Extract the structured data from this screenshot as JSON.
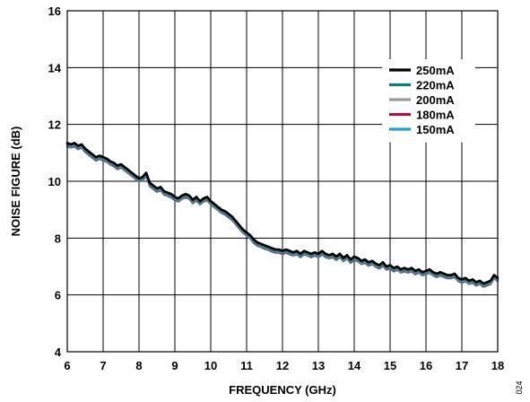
{
  "chart_data": {
    "type": "line",
    "title": "",
    "xlabel": "FREQUENCY (GHz)",
    "ylabel": "NOISE FIGURE (dB)",
    "xlim": [
      6,
      18
    ],
    "ylim": [
      4,
      16
    ],
    "xticks": [
      6,
      7,
      8,
      9,
      10,
      11,
      12,
      13,
      14,
      15,
      16,
      17,
      18
    ],
    "yticks": [
      4,
      6,
      8,
      10,
      12,
      14,
      16
    ],
    "grid": true,
    "legend_position": "top-right",
    "figure_id": "024",
    "x": [
      6.0,
      6.1,
      6.2,
      6.3,
      6.4,
      6.5,
      6.6,
      6.7,
      6.8,
      6.9,
      7.0,
      7.1,
      7.2,
      7.3,
      7.4,
      7.5,
      7.6,
      7.7,
      7.8,
      7.9,
      8.0,
      8.1,
      8.2,
      8.3,
      8.4,
      8.5,
      8.6,
      8.7,
      8.8,
      8.9,
      9.0,
      9.1,
      9.2,
      9.3,
      9.4,
      9.5,
      9.6,
      9.7,
      9.8,
      9.9,
      10.0,
      10.1,
      10.2,
      10.3,
      10.4,
      10.5,
      10.6,
      10.7,
      10.8,
      10.9,
      11.0,
      11.1,
      11.2,
      11.3,
      11.4,
      11.5,
      11.6,
      11.7,
      11.8,
      11.9,
      12.0,
      12.1,
      12.2,
      12.3,
      12.4,
      12.5,
      12.6,
      12.7,
      12.8,
      12.9,
      13.0,
      13.1,
      13.2,
      13.3,
      13.4,
      13.5,
      13.6,
      13.7,
      13.8,
      13.9,
      14.0,
      14.1,
      14.2,
      14.3,
      14.4,
      14.5,
      14.6,
      14.7,
      14.8,
      14.9,
      15.0,
      15.1,
      15.2,
      15.3,
      15.4,
      15.5,
      15.6,
      15.7,
      15.8,
      15.9,
      16.0,
      16.1,
      16.2,
      16.3,
      16.4,
      16.5,
      16.6,
      16.7,
      16.8,
      16.9,
      17.0,
      17.1,
      17.2,
      17.3,
      17.4,
      17.5,
      17.6,
      17.7,
      17.8,
      17.9,
      18.0
    ],
    "series": [
      {
        "name": "250mA",
        "color": "#000000",
        "values": [
          11.35,
          11.3,
          11.35,
          11.25,
          11.3,
          11.15,
          11.05,
          10.95,
          10.85,
          10.9,
          10.85,
          10.8,
          10.7,
          10.65,
          10.55,
          10.6,
          10.5,
          10.4,
          10.3,
          10.2,
          10.1,
          10.15,
          10.3,
          9.95,
          9.85,
          9.75,
          9.8,
          9.65,
          9.6,
          9.55,
          9.45,
          9.4,
          9.5,
          9.55,
          9.5,
          9.35,
          9.45,
          9.3,
          9.4,
          9.45,
          9.3,
          9.2,
          9.1,
          9.0,
          8.95,
          8.85,
          8.75,
          8.6,
          8.45,
          8.3,
          8.2,
          8.1,
          7.95,
          7.85,
          7.8,
          7.75,
          7.7,
          7.65,
          7.6,
          7.6,
          7.55,
          7.6,
          7.55,
          7.5,
          7.55,
          7.45,
          7.55,
          7.5,
          7.45,
          7.5,
          7.45,
          7.55,
          7.45,
          7.4,
          7.45,
          7.35,
          7.45,
          7.3,
          7.4,
          7.25,
          7.35,
          7.3,
          7.2,
          7.25,
          7.15,
          7.2,
          7.1,
          7.05,
          7.15,
          7.0,
          7.05,
          6.95,
          7.0,
          6.9,
          6.95,
          6.9,
          6.95,
          6.85,
          6.9,
          6.8,
          6.85,
          6.9,
          6.8,
          6.75,
          6.8,
          6.75,
          6.7,
          6.7,
          6.75,
          6.6,
          6.55,
          6.6,
          6.5,
          6.55,
          6.45,
          6.5,
          6.4,
          6.45,
          6.5,
          6.7,
          6.6
        ]
      },
      {
        "name": "220mA",
        "color": "#127c78",
        "values": [
          11.3,
          11.25,
          11.3,
          11.2,
          11.25,
          11.1,
          11.0,
          10.9,
          10.8,
          10.85,
          10.8,
          10.75,
          10.65,
          10.6,
          10.5,
          10.55,
          10.45,
          10.35,
          10.25,
          10.15,
          10.05,
          10.1,
          10.25,
          9.9,
          9.8,
          9.7,
          9.75,
          9.6,
          9.55,
          9.5,
          9.4,
          9.35,
          9.45,
          9.5,
          9.45,
          9.3,
          9.4,
          9.25,
          9.35,
          9.4,
          9.25,
          9.15,
          9.05,
          8.95,
          8.9,
          8.8,
          8.7,
          8.55,
          8.4,
          8.25,
          8.15,
          8.05,
          7.9,
          7.8,
          7.75,
          7.7,
          7.65,
          7.6,
          7.55,
          7.55,
          7.5,
          7.55,
          7.5,
          7.45,
          7.5,
          7.4,
          7.5,
          7.45,
          7.4,
          7.45,
          7.4,
          7.5,
          7.4,
          7.35,
          7.4,
          7.3,
          7.4,
          7.25,
          7.35,
          7.2,
          7.3,
          7.25,
          7.15,
          7.2,
          7.1,
          7.15,
          7.05,
          7.0,
          7.1,
          6.95,
          7.0,
          6.9,
          6.95,
          6.85,
          6.9,
          6.85,
          6.9,
          6.8,
          6.85,
          6.75,
          6.8,
          6.85,
          6.75,
          6.7,
          6.75,
          6.7,
          6.65,
          6.65,
          6.7,
          6.55,
          6.5,
          6.55,
          6.45,
          6.5,
          6.4,
          6.45,
          6.35,
          6.4,
          6.45,
          6.65,
          6.55
        ]
      },
      {
        "name": "200mA",
        "color": "#9a9a9a",
        "values": [
          11.28,
          11.22,
          11.28,
          11.18,
          11.22,
          11.08,
          10.98,
          10.88,
          10.78,
          10.82,
          10.78,
          10.72,
          10.62,
          10.58,
          10.48,
          10.52,
          10.42,
          10.32,
          10.22,
          10.12,
          10.02,
          10.08,
          10.22,
          9.88,
          9.78,
          9.68,
          9.72,
          9.58,
          9.52,
          9.48,
          9.38,
          9.32,
          9.42,
          9.48,
          9.42,
          9.28,
          9.38,
          9.22,
          9.32,
          9.38,
          9.22,
          9.12,
          9.02,
          8.92,
          8.88,
          8.78,
          8.68,
          8.52,
          8.38,
          8.22,
          8.12,
          8.02,
          7.88,
          7.78,
          7.72,
          7.68,
          7.62,
          7.58,
          7.52,
          7.52,
          7.48,
          7.52,
          7.48,
          7.42,
          7.48,
          7.38,
          7.48,
          7.42,
          7.38,
          7.42,
          7.38,
          7.48,
          7.38,
          7.32,
          7.38,
          7.28,
          7.38,
          7.22,
          7.32,
          7.18,
          7.28,
          7.22,
          7.12,
          7.18,
          7.08,
          7.12,
          7.02,
          6.98,
          7.08,
          6.92,
          6.98,
          6.88,
          6.92,
          6.82,
          6.88,
          6.82,
          6.88,
          6.78,
          6.82,
          6.72,
          6.78,
          6.82,
          6.72,
          6.68,
          6.72,
          6.68,
          6.62,
          6.62,
          6.68,
          6.52,
          6.48,
          6.52,
          6.42,
          6.48,
          6.38,
          6.42,
          6.32,
          6.38,
          6.42,
          6.62,
          6.52
        ]
      },
      {
        "name": "180mA",
        "color": "#9b1b4a",
        "values": [
          11.25,
          11.2,
          11.25,
          11.15,
          11.2,
          11.05,
          10.95,
          10.85,
          10.75,
          10.8,
          10.75,
          10.7,
          10.6,
          10.55,
          10.45,
          10.5,
          10.4,
          10.3,
          10.2,
          10.1,
          10.0,
          10.05,
          10.2,
          9.85,
          9.75,
          9.65,
          9.7,
          9.55,
          9.5,
          9.45,
          9.35,
          9.3,
          9.4,
          9.45,
          9.4,
          9.25,
          9.35,
          9.2,
          9.3,
          9.35,
          9.2,
          9.1,
          9.0,
          8.9,
          8.85,
          8.75,
          8.65,
          8.5,
          8.35,
          8.2,
          8.1,
          8.0,
          7.85,
          7.75,
          7.7,
          7.65,
          7.6,
          7.55,
          7.5,
          7.5,
          7.45,
          7.5,
          7.45,
          7.4,
          7.45,
          7.35,
          7.45,
          7.4,
          7.35,
          7.4,
          7.35,
          7.45,
          7.35,
          7.3,
          7.35,
          7.25,
          7.35,
          7.2,
          7.3,
          7.15,
          7.25,
          7.2,
          7.1,
          7.15,
          7.05,
          7.1,
          7.0,
          6.95,
          7.05,
          6.9,
          6.95,
          6.85,
          6.9,
          6.8,
          6.85,
          6.8,
          6.85,
          6.75,
          6.8,
          6.7,
          6.75,
          6.8,
          6.7,
          6.65,
          6.7,
          6.65,
          6.6,
          6.6,
          6.65,
          6.5,
          6.45,
          6.5,
          6.4,
          6.45,
          6.35,
          6.4,
          6.3,
          6.35,
          6.4,
          6.6,
          6.5
        ]
      },
      {
        "name": "150mA",
        "color": "#2a9fd8",
        "values": [
          11.22,
          11.18,
          11.22,
          11.12,
          11.18,
          11.02,
          10.92,
          10.82,
          10.72,
          10.78,
          10.72,
          10.68,
          10.58,
          10.52,
          10.42,
          10.48,
          10.38,
          10.28,
          10.18,
          10.08,
          9.98,
          10.02,
          10.18,
          9.82,
          9.72,
          9.62,
          9.68,
          9.52,
          9.48,
          9.42,
          9.32,
          9.28,
          9.38,
          9.42,
          9.38,
          9.22,
          9.32,
          9.18,
          9.28,
          9.32,
          9.18,
          9.08,
          8.98,
          8.88,
          8.82,
          8.72,
          8.62,
          8.48,
          8.32,
          8.18,
          8.08,
          7.98,
          7.82,
          7.72,
          7.68,
          7.62,
          7.58,
          7.52,
          7.48,
          7.48,
          7.42,
          7.48,
          7.42,
          7.38,
          7.42,
          7.32,
          7.42,
          7.38,
          7.32,
          7.38,
          7.32,
          7.42,
          7.32,
          7.28,
          7.32,
          7.22,
          7.32,
          7.18,
          7.28,
          7.12,
          7.22,
          7.18,
          7.08,
          7.12,
          7.02,
          7.08,
          6.98,
          6.92,
          7.02,
          6.88,
          6.92,
          6.82,
          6.88,
          6.78,
          6.82,
          6.78,
          6.82,
          6.72,
          6.78,
          6.68,
          6.72,
          6.78,
          6.68,
          6.62,
          6.68,
          6.62,
          6.58,
          6.58,
          6.62,
          6.48,
          6.42,
          6.48,
          6.38,
          6.42,
          6.32,
          6.38,
          6.28,
          6.32,
          6.38,
          6.58,
          6.48
        ]
      }
    ]
  }
}
